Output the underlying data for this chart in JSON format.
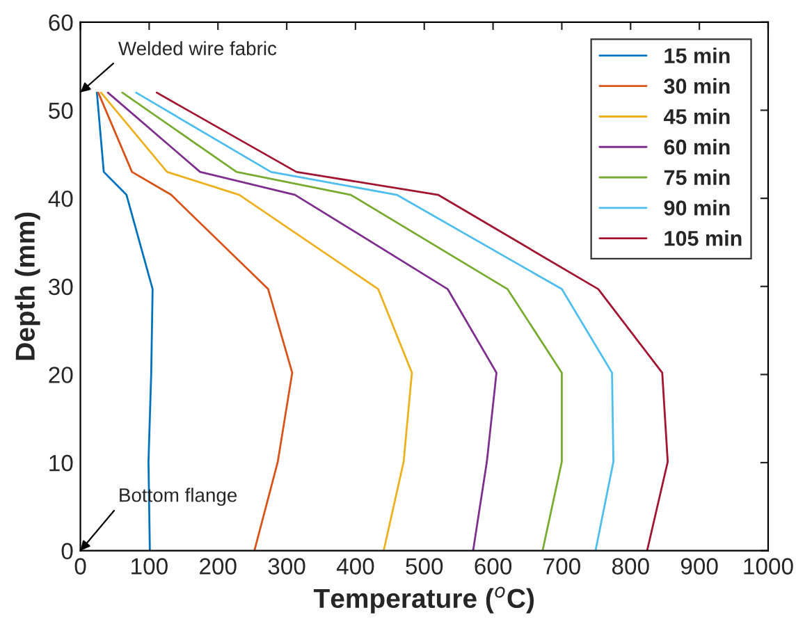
{
  "chart_data": {
    "type": "line",
    "xlabel": "Temperature ($^{o}$C)",
    "ylabel": "Depth (mm)",
    "xlim": [
      0,
      1000
    ],
    "ylim": [
      0,
      60
    ],
    "xticks": [
      0,
      100,
      200,
      300,
      400,
      500,
      600,
      700,
      800,
      900,
      1000
    ],
    "yticks": [
      0,
      10,
      20,
      30,
      40,
      50,
      60
    ],
    "grid": false,
    "legend": "top right",
    "marker": "none",
    "line_style": "solid",
    "annotations": [
      "Welded wire fabric",
      "Bottom flange"
    ],
    "series": [
      {
        "name": "15 min",
        "color": "#0072bd",
        "x": [
          24,
          34,
          67,
          105,
          103,
          99,
          101
        ],
        "values": [
          52,
          43,
          40.4,
          29.7,
          20.2,
          10.1,
          0
        ]
      },
      {
        "name": "30 min",
        "color": "#d95319",
        "x": [
          26,
          75,
          132,
          273,
          308,
          287,
          253
        ],
        "values": [
          52,
          43,
          40.4,
          29.7,
          20.2,
          10.1,
          0
        ]
      },
      {
        "name": "45 min",
        "color": "#edb120",
        "x": [
          30,
          126,
          231,
          433,
          482,
          470,
          441
        ],
        "values": [
          52,
          43,
          40.4,
          29.7,
          20.2,
          10.1,
          0
        ]
      },
      {
        "name": "60 min",
        "color": "#7e2f8e",
        "x": [
          40,
          174,
          312,
          534,
          605,
          591,
          571
        ],
        "values": [
          52,
          43,
          40.4,
          29.7,
          20.2,
          10.1,
          0
        ]
      },
      {
        "name": "75 min",
        "color": "#77ac30",
        "x": [
          61,
          227,
          393,
          621,
          700,
          700,
          672
        ],
        "values": [
          52,
          43,
          40.4,
          29.7,
          20.2,
          10.1,
          0
        ]
      },
      {
        "name": "90 min",
        "color": "#4dbeee",
        "x": [
          81,
          277,
          460,
          700,
          773,
          775,
          749
        ],
        "values": [
          52,
          43,
          40.4,
          29.7,
          20.2,
          10.1,
          0
        ]
      },
      {
        "name": "105 min",
        "color": "#a2142f",
        "x": [
          111,
          314,
          520,
          753,
          846,
          854,
          824
        ],
        "values": [
          52,
          43,
          40.4,
          29.7,
          20.2,
          10.1,
          0
        ]
      }
    ]
  }
}
